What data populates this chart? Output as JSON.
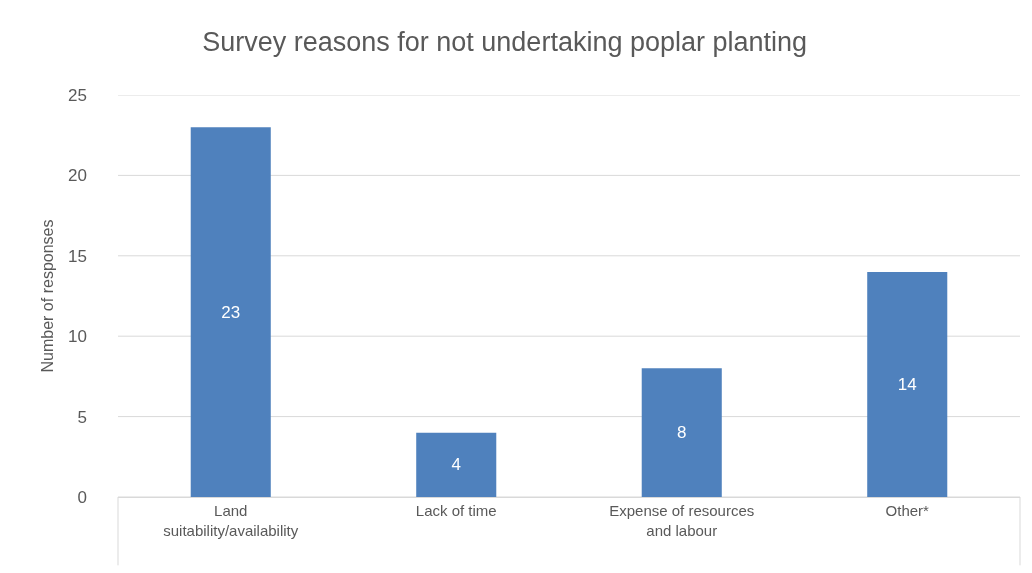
{
  "chart_data": {
    "type": "bar",
    "title": "Survey reasons for not undertaking poplar planting",
    "ylabel": "Number of responses",
    "categories": [
      "Land suitability/availability",
      "Lack of time",
      "Expense of resources and labour",
      "Other*"
    ],
    "values": [
      23,
      4,
      8,
      14
    ],
    "color": "#4f81bd",
    "data_labels": true,
    "ylim": [
      0,
      25
    ],
    "yticks": [
      0,
      5,
      10,
      15,
      20,
      25
    ],
    "grid": "y"
  }
}
